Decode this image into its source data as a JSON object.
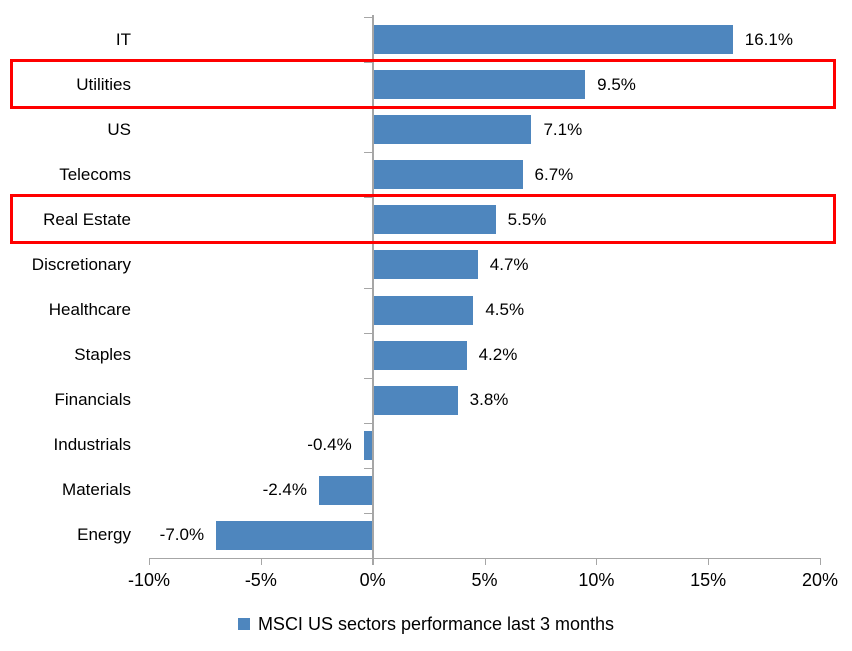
{
  "chart_data": {
    "type": "bar",
    "orientation": "horizontal",
    "categories": [
      "IT",
      "Utilities",
      "US",
      "Telecoms",
      "Real Estate",
      "Discretionary",
      "Healthcare",
      "Staples",
      "Financials",
      "Industrials",
      "Materials",
      "Energy"
    ],
    "values": [
      16.1,
      9.5,
      7.1,
      6.7,
      5.5,
      4.7,
      4.5,
      4.2,
      3.8,
      -0.4,
      -2.4,
      -7.0
    ],
    "value_labels": [
      "16.1%",
      "9.5%",
      "7.1%",
      "6.7%",
      "5.5%",
      "4.7%",
      "4.5%",
      "4.2%",
      "3.8%",
      "-0.4%",
      "-2.4%",
      "-7.0%"
    ],
    "highlighted_categories": [
      "Utilities",
      "Real Estate"
    ],
    "xlim": [
      -10,
      20
    ],
    "x_tick_values": [
      -10,
      -5,
      0,
      5,
      10,
      15,
      20
    ],
    "x_ticks": [
      "-10%",
      "-5%",
      "0%",
      "5%",
      "10%",
      "15%",
      "20%"
    ],
    "grid": false,
    "legend": {
      "position": "bottom",
      "label": "MSCI US sectors performance last 3 months"
    },
    "colors": {
      "bar": "#4E86BE",
      "highlight_box": "#FF0000",
      "axis": "#A6A6A6",
      "text": "#000000"
    }
  }
}
